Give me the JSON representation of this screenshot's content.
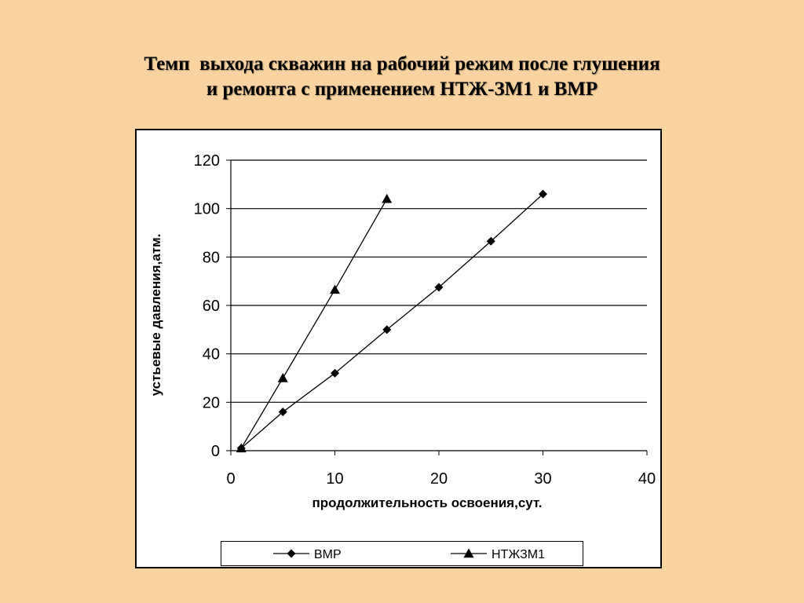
{
  "slide": {
    "title_line1": "Темп  выхода скважин на рабочий режим после глушения",
    "title_line2": "и ремонта с применением НТЖ-ЗМ1 и ВМР"
  },
  "chart_data": {
    "type": "line",
    "xlabel": "продолжительность освоения,сут.",
    "ylabel": "устьевые давления,атм.",
    "xlim": [
      0,
      40
    ],
    "ylim": [
      0,
      120
    ],
    "xticks": [
      0,
      10,
      20,
      30,
      40
    ],
    "yticks": [
      0,
      20,
      40,
      60,
      80,
      100,
      120
    ],
    "grid": "horizontal",
    "legend_position": "bottom",
    "series": [
      {
        "name": "ВМР",
        "marker": "diamond",
        "color": "#000000",
        "x": [
          1,
          5,
          10,
          15,
          20,
          25,
          30
        ],
        "y": [
          1,
          16,
          32,
          50,
          67.5,
          86.5,
          106
        ]
      },
      {
        "name": "НТЖЗМ1",
        "marker": "triangle",
        "color": "#000000",
        "x": [
          1,
          5,
          10,
          15
        ],
        "y": [
          1,
          30,
          66.5,
          104
        ]
      }
    ]
  },
  "colors": {
    "background": "#f9d4a0",
    "plot": "#ffffff",
    "ink": "#000000"
  }
}
